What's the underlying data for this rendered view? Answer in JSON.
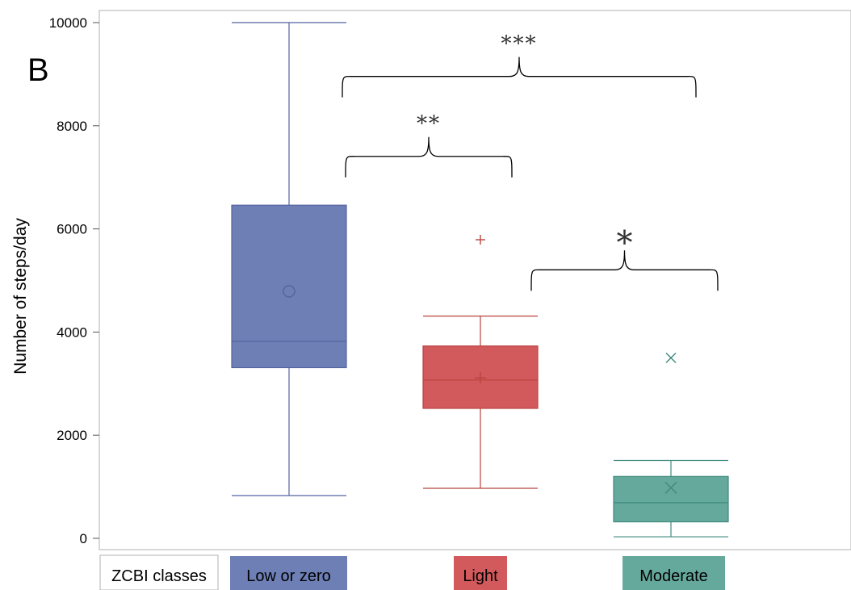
{
  "chart_data": {
    "type": "box",
    "panel_label": "B",
    "ylabel": "Number of steps/day",
    "ylim": [
      0,
      10000
    ],
    "yticks": [
      0,
      2000,
      4000,
      6000,
      8000,
      10000
    ],
    "grid": false,
    "legend": {
      "title": "ZCBI classes",
      "placement": "bottom",
      "entries": [
        "Low or zero",
        "Light",
        "Moderate"
      ]
    },
    "series": [
      {
        "name": "Low or zero",
        "color": "#6d7fb5",
        "edge": "#5563a0",
        "whisker_low": 830,
        "q1": 3310,
        "median": 3820,
        "q3": 6460,
        "whisker_high": 10000,
        "mean": 4790,
        "mean_marker": "circle",
        "outliers": []
      },
      {
        "name": "Light",
        "color": "#d35a5c",
        "edge": "#b8443f",
        "whisker_low": 970,
        "q1": 2520,
        "median": 3070,
        "q3": 3730,
        "whisker_high": 4310,
        "mean": 3110,
        "mean_marker": "plus",
        "outliers": [
          5790
        ]
      },
      {
        "name": "Moderate",
        "color": "#65a89c",
        "edge": "#3f8a7e",
        "whisker_low": 30,
        "q1": 320,
        "median": 690,
        "q3": 1200,
        "whisker_high": 1510,
        "mean": 980,
        "mean_marker": "x",
        "outliers": [
          3500
        ]
      }
    ],
    "annotations": [
      {
        "label": "***",
        "from": "Low or zero",
        "to": "Moderate",
        "y": 8800
      },
      {
        "label": "**",
        "from": "Low or zero",
        "to": "Light",
        "y": 7250
      },
      {
        "label": "*",
        "from": "Light",
        "to": "Moderate",
        "y": 5050
      }
    ]
  }
}
